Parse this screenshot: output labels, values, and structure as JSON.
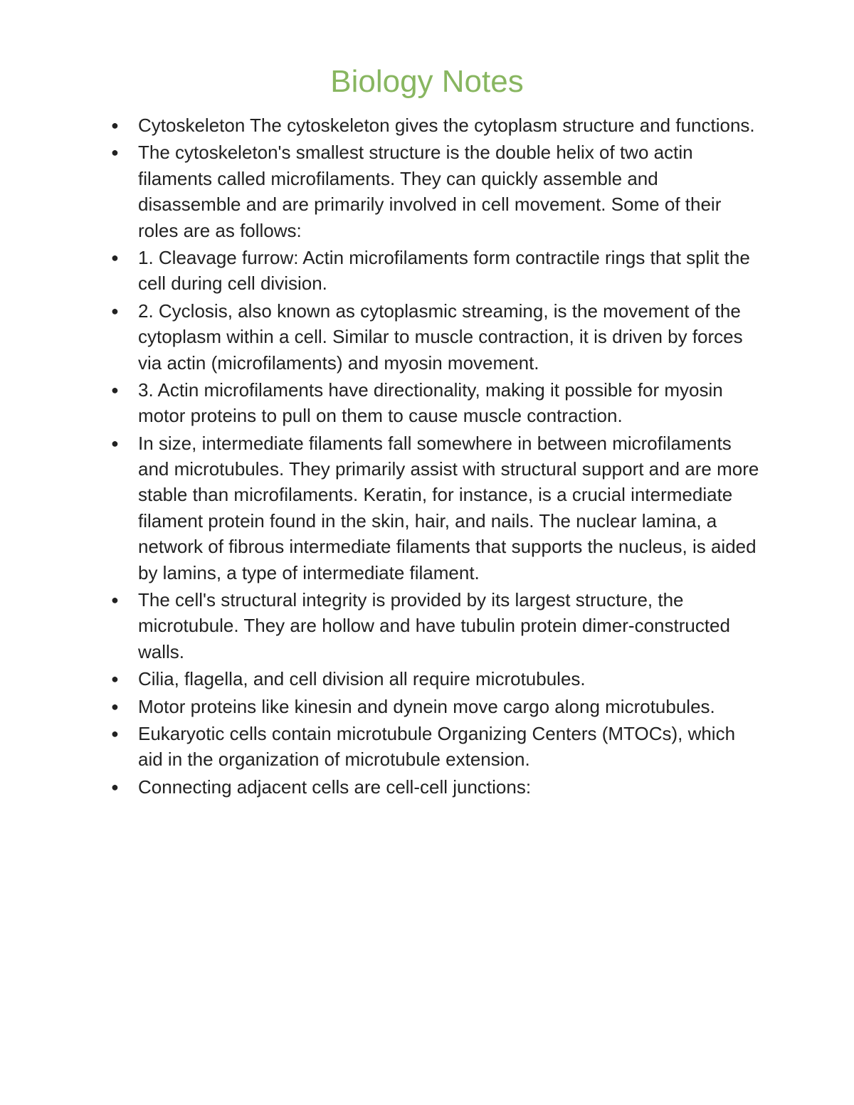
{
  "document": {
    "title": "Biology Notes",
    "title_color": "#88b660",
    "text_color": "#222222",
    "background_color": "#ffffff",
    "title_fontsize": 44,
    "body_fontsize": 26,
    "bullet_items": [
      "Cytoskeleton The cytoskeleton gives the cytoplasm structure and functions.",
      "The cytoskeleton's smallest structure is the double helix of two actin filaments called microfilaments. They can quickly assemble and disassemble and are primarily involved in cell movement. Some of their roles are as follows:",
      "1. Cleavage furrow: Actin microfilaments form contractile rings that split the cell during cell division.",
      "2. Cyclosis, also known as cytoplasmic streaming, is the movement of the cytoplasm within a cell. Similar to muscle contraction, it is driven by forces via actin (microfilaments) and myosin movement.",
      "3. Actin microfilaments have directionality, making it possible for myosin motor proteins to pull on them to cause muscle contraction.",
      "In size, intermediate filaments fall somewhere in between microfilaments and microtubules. They primarily assist with structural support and are more stable than microfilaments. Keratin, for instance, is a crucial intermediate filament protein found in the skin, hair, and nails. The nuclear lamina, a network of fibrous intermediate filaments that supports the nucleus, is aided by lamins, a type of intermediate filament.",
      "The cell's structural integrity is provided by its largest structure, the microtubule. They are hollow and have tubulin protein dimer-constructed walls.",
      "Cilia, flagella, and cell division all require microtubules.",
      "Motor proteins like kinesin and dynein move cargo along microtubules.",
      "Eukaryotic cells contain microtubule Organizing Centers (MTOCs), which aid in the organization of microtubule extension.",
      "Connecting adjacent cells are cell-cell junctions:"
    ]
  }
}
